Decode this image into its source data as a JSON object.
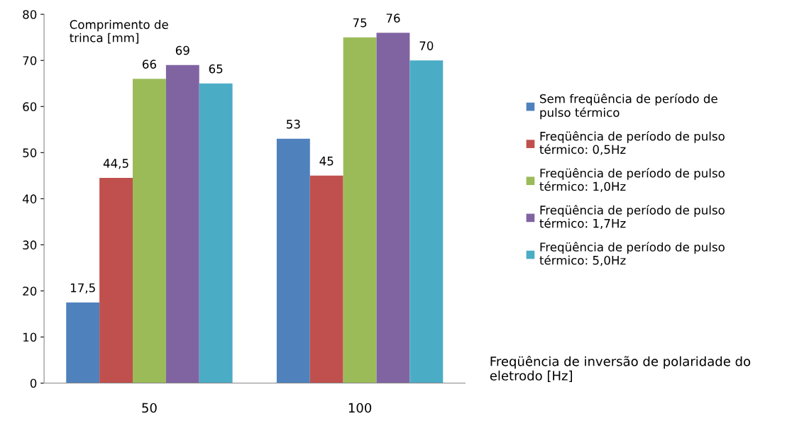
{
  "chart_data": {
    "type": "bar",
    "categories": [
      "50",
      "100"
    ],
    "series": [
      {
        "name": "Sem freqüência de período de\npulso térmico",
        "color": "#4f81bd",
        "values": [
          17.5,
          53
        ],
        "value_labels": [
          "17,5",
          "53"
        ]
      },
      {
        "name": "Freqüência de período de pulso\ntérmico: 0,5Hz",
        "color": "#c0504d",
        "values": [
          44.5,
          45
        ],
        "value_labels": [
          "44,5",
          "45"
        ]
      },
      {
        "name": "Freqüência de período de pulso\ntérmico: 1,0Hz",
        "color": "#9bbb59",
        "values": [
          66,
          75
        ],
        "value_labels": [
          "66",
          "75"
        ]
      },
      {
        "name": "Freqüência de período de pulso\ntérmico: 1,7Hz",
        "color": "#8064a2",
        "values": [
          69,
          76
        ],
        "value_labels": [
          "69",
          "76"
        ]
      },
      {
        "name": "Freqüência de período de pulso\ntérmico: 5,0Hz",
        "color": "#4bacc6",
        "values": [
          65,
          70
        ],
        "value_labels": [
          "65",
          "70"
        ]
      }
    ],
    "ylabel": "Comprimento de\ntrinca [mm]",
    "xlabel": "Freqüência de inversão de polaridade do\neletrodo [Hz]",
    "ylim": [
      0,
      80
    ],
    "yticks": [
      0,
      10,
      20,
      30,
      40,
      50,
      60,
      70,
      80
    ],
    "grid": false,
    "legend": "right"
  }
}
